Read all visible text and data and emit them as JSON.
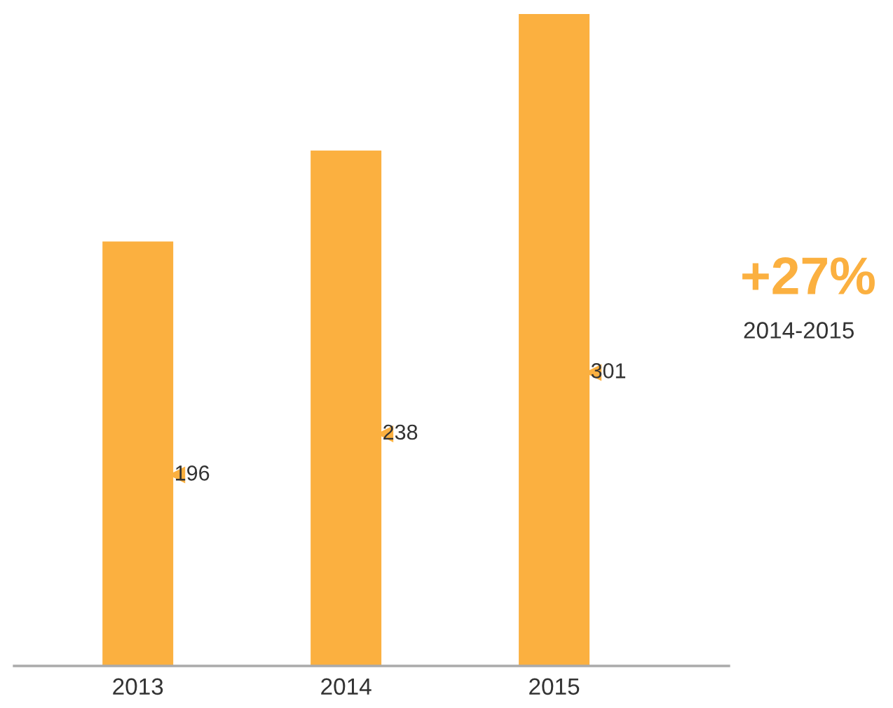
{
  "chart_data": {
    "type": "bar",
    "categories": [
      "2013",
      "2014",
      "2015"
    ],
    "values": [
      196,
      238,
      301
    ],
    "color": "#fbb040",
    "data_labels": true,
    "annotations": [
      "+27%",
      "2014-2015"
    ]
  }
}
